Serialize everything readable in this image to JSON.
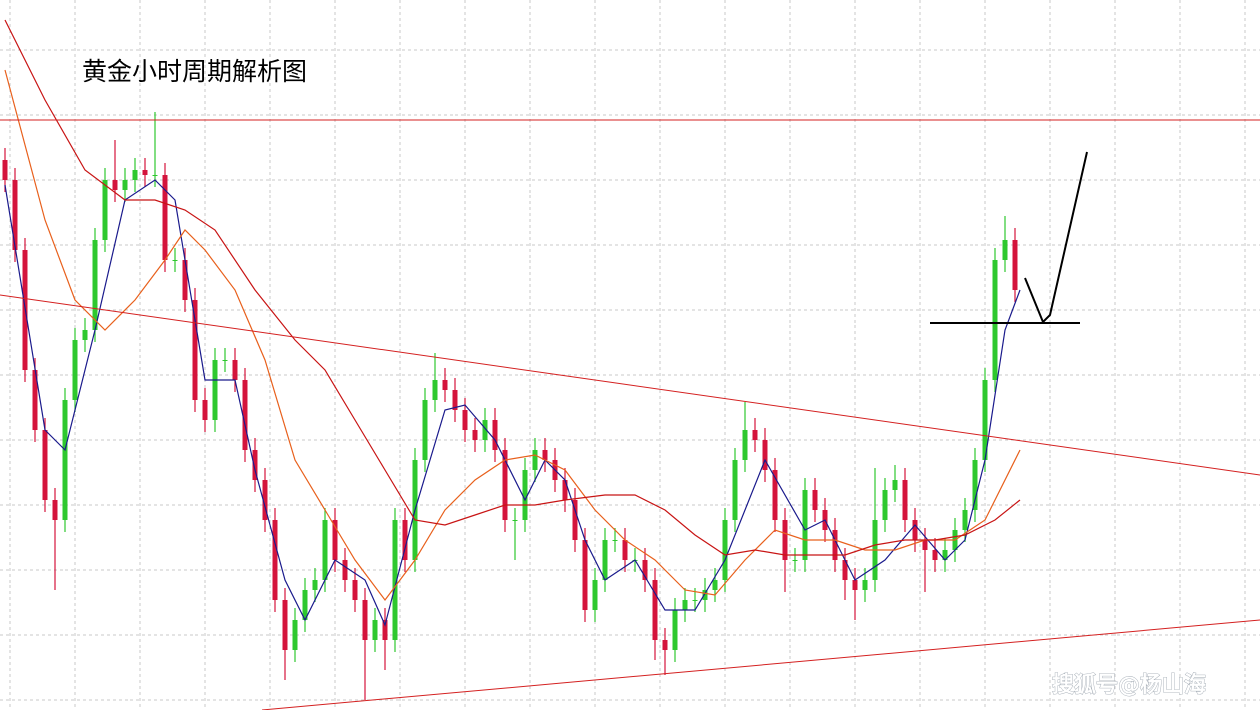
{
  "chart_data": {
    "type": "candlestick",
    "title": "黄金小时周期解析图",
    "watermark": "搜狐号@杨山海",
    "xlim": [
      -0.5,
      125.5
    ],
    "ylim": [
      0,
      710
    ],
    "up_color": "#2ec82e",
    "down_color": "#d4143c",
    "candles": [
      [
        550,
        562,
        518,
        530
      ],
      [
        530,
        542,
        448,
        460
      ],
      [
        460,
        472,
        328,
        340
      ],
      [
        340,
        352,
        268,
        280
      ],
      [
        280,
        292,
        198,
        210
      ],
      [
        210,
        222,
        120,
        190
      ],
      [
        190,
        322,
        178,
        310
      ],
      [
        310,
        382,
        298,
        370
      ],
      [
        370,
        392,
        358,
        380
      ],
      [
        380,
        482,
        368,
        470
      ],
      [
        470,
        542,
        458,
        530
      ],
      [
        530,
        570,
        508,
        520
      ],
      [
        520,
        542,
        508,
        530
      ],
      [
        530,
        552,
        518,
        540
      ],
      [
        540,
        552,
        523,
        535
      ],
      [
        535,
        598,
        523,
        535
      ],
      [
        535,
        547,
        438,
        450
      ],
      [
        450,
        462,
        438,
        450
      ],
      [
        450,
        462,
        398,
        410
      ],
      [
        410,
        422,
        298,
        310
      ],
      [
        310,
        322,
        278,
        290
      ],
      [
        290,
        362,
        278,
        350
      ],
      [
        350,
        362,
        338,
        350
      ],
      [
        350,
        362,
        318,
        330
      ],
      [
        330,
        342,
        248,
        260
      ],
      [
        260,
        272,
        218,
        230
      ],
      [
        230,
        242,
        178,
        190
      ],
      [
        190,
        202,
        98,
        110
      ],
      [
        110,
        122,
        30,
        60
      ],
      [
        60,
        102,
        48,
        90
      ],
      [
        90,
        132,
        78,
        120
      ],
      [
        120,
        142,
        108,
        130
      ],
      [
        130,
        202,
        118,
        190
      ],
      [
        190,
        202,
        138,
        150
      ],
      [
        150,
        162,
        118,
        130
      ],
      [
        130,
        142,
        98,
        110
      ],
      [
        110,
        122,
        10,
        70
      ],
      [
        70,
        102,
        58,
        90
      ],
      [
        90,
        102,
        40,
        70
      ],
      [
        70,
        202,
        58,
        190
      ],
      [
        190,
        202,
        138,
        150
      ],
      [
        150,
        262,
        138,
        250
      ],
      [
        250,
        322,
        238,
        310
      ],
      [
        310,
        357,
        298,
        330
      ],
      [
        330,
        342,
        308,
        320
      ],
      [
        320,
        332,
        288,
        300
      ],
      [
        300,
        312,
        268,
        280
      ],
      [
        280,
        292,
        258,
        270
      ],
      [
        270,
        302,
        258,
        290
      ],
      [
        290,
        302,
        248,
        260
      ],
      [
        260,
        272,
        178,
        190
      ],
      [
        190,
        202,
        150,
        190
      ],
      [
        190,
        252,
        178,
        240
      ],
      [
        240,
        272,
        228,
        260
      ],
      [
        260,
        272,
        238,
        250
      ],
      [
        250,
        262,
        218,
        230
      ],
      [
        230,
        242,
        198,
        210
      ],
      [
        210,
        222,
        158,
        170
      ],
      [
        170,
        182,
        88,
        100
      ],
      [
        100,
        142,
        88,
        130
      ],
      [
        130,
        182,
        118,
        170
      ],
      [
        170,
        182,
        158,
        170
      ],
      [
        170,
        182,
        138,
        150
      ],
      [
        150,
        162,
        138,
        150
      ],
      [
        150,
        162,
        118,
        130
      ],
      [
        130,
        142,
        50,
        70
      ],
      [
        70,
        82,
        35,
        60
      ],
      [
        60,
        112,
        48,
        100
      ],
      [
        100,
        122,
        88,
        110
      ],
      [
        110,
        122,
        98,
        110
      ],
      [
        110,
        132,
        98,
        120
      ],
      [
        120,
        142,
        108,
        130
      ],
      [
        130,
        202,
        118,
        190
      ],
      [
        190,
        262,
        178,
        250
      ],
      [
        250,
        308,
        238,
        280
      ],
      [
        280,
        292,
        258,
        270
      ],
      [
        270,
        282,
        228,
        240
      ],
      [
        240,
        252,
        178,
        190
      ],
      [
        190,
        202,
        118,
        150
      ],
      [
        150,
        162,
        138,
        150
      ],
      [
        150,
        232,
        138,
        220
      ],
      [
        220,
        232,
        188,
        200
      ],
      [
        200,
        212,
        168,
        180
      ],
      [
        180,
        192,
        138,
        150
      ],
      [
        150,
        162,
        110,
        130
      ],
      [
        130,
        142,
        90,
        120
      ],
      [
        120,
        142,
        108,
        130
      ],
      [
        130,
        242,
        118,
        190
      ],
      [
        190,
        232,
        178,
        220
      ],
      [
        220,
        245,
        208,
        230
      ],
      [
        230,
        242,
        178,
        190
      ],
      [
        190,
        202,
        158,
        170
      ],
      [
        170,
        182,
        118,
        160
      ],
      [
        160,
        172,
        138,
        150
      ],
      [
        150,
        172,
        138,
        160
      ],
      [
        160,
        192,
        148,
        180
      ],
      [
        180,
        212,
        168,
        200
      ],
      [
        200,
        262,
        188,
        250
      ],
      [
        250,
        342,
        238,
        330
      ],
      [
        330,
        462,
        318,
        450
      ],
      [
        450,
        494,
        438,
        470
      ],
      [
        470,
        482,
        408,
        420
      ]
    ],
    "series": [
      {
        "color": "#1a1a8c",
        "x": [
          0,
          4,
          6,
          9,
          12,
          15,
          17,
          20,
          23,
          25,
          28,
          30,
          33,
          36,
          38,
          41,
          44,
          46,
          49,
          52,
          54,
          56,
          58,
          60,
          63,
          66,
          69,
          72,
          76,
          80,
          82,
          85,
          88,
          91,
          94,
          96,
          98,
          100,
          101.5
        ],
        "values": [
          525,
          280,
          260,
          380,
          510,
          530,
          510,
          330,
          330,
          240,
          130,
          90,
          150,
          130,
          85,
          200,
          300,
          305,
          270,
          210,
          250,
          230,
          170,
          130,
          150,
          100,
          100,
          150,
          250,
          180,
          190,
          130,
          150,
          185,
          150,
          170,
          250,
          380,
          420
        ]
      },
      {
        "color": "#e8601c",
        "x": [
          0,
          4,
          7,
          10,
          13,
          16,
          18,
          20,
          23,
          26,
          29,
          32,
          35,
          38,
          41,
          44,
          47,
          50,
          53,
          56,
          59,
          62,
          65,
          68,
          71,
          74,
          77,
          80,
          83,
          86,
          89,
          92,
          95,
          98,
          101.5
        ],
        "values": [
          640,
          490,
          410,
          380,
          410,
          450,
          480,
          460,
          420,
          350,
          250,
          200,
          150,
          110,
          150,
          200,
          230,
          250,
          255,
          240,
          200,
          170,
          150,
          120,
          115,
          150,
          180,
          170,
          170,
          160,
          160,
          170,
          170,
          190,
          260
        ]
      },
      {
        "color": "#c81414",
        "x": [
          0,
          4,
          8,
          12,
          15,
          18,
          21,
          25,
          29,
          32,
          35,
          38,
          41,
          44,
          47,
          50,
          53,
          56,
          60,
          63,
          66,
          69,
          72,
          75,
          78,
          81,
          84,
          87,
          90,
          93,
          96,
          99,
          101.5
        ],
        "values": [
          690,
          610,
          540,
          510,
          510,
          500,
          480,
          420,
          370,
          340,
          290,
          240,
          190,
          185,
          195,
          205,
          205,
          210,
          215,
          215,
          200,
          175,
          155,
          160,
          155,
          155,
          155,
          165,
          170,
          170,
          175,
          190,
          210
        ]
      }
    ]
  }
}
